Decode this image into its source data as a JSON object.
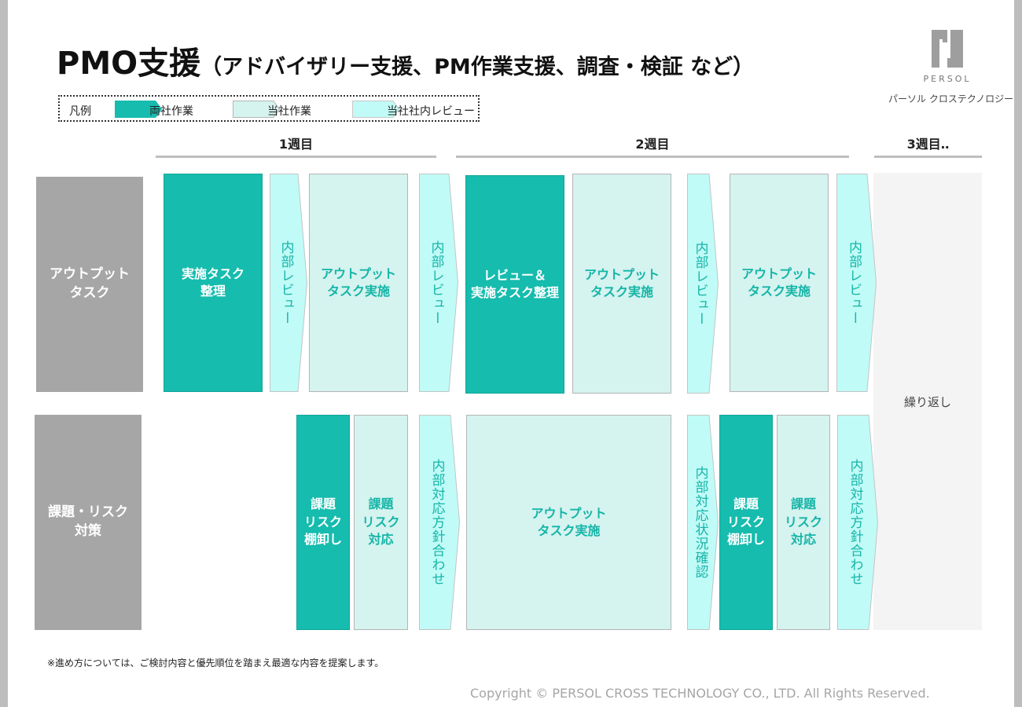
{
  "title": {
    "main": "PMO支援",
    "sub": "（アドバイザリー支援、PM作業支援、調査・検証 など）"
  },
  "logo": {
    "wordmark": "PERSOL",
    "company": "パーソル クロステクノロジー"
  },
  "legend": {
    "label": "凡例",
    "items": [
      {
        "label": "両社作業",
        "color": "#16bcae"
      },
      {
        "label": "当社作業",
        "color": "#d5f3ef"
      },
      {
        "label": "当社社内レビュー",
        "color": "#c0fbf7"
      }
    ]
  },
  "weeks": [
    "1週目",
    "2週目",
    "3週目‥"
  ],
  "rows": [
    "アウトプット\nタスク",
    "課題・リスク\n対策"
  ],
  "row1": {
    "b1": "実施タスク\n整理",
    "a1": "内部レビュー",
    "b2": "アウトプット\nタスク実施",
    "a2": "内部レビュー",
    "b3": "レビュー＆\n実施タスク整理",
    "b4": "アウトプット\nタスク実施",
    "a3": "内部レビュー",
    "b5": "アウトプット\nタスク実施",
    "a4": "内部レビュー"
  },
  "row2": {
    "b1": "課題\nリスク\n棚卸し",
    "b2": "課題\nリスク\n対応",
    "a1": "内部対応方針合わせ",
    "b3": "アウトプット\nタスク実施",
    "a2": "内部対応状況確認",
    "b4": "課題\nリスク\n棚卸し",
    "b5": "課題\nリスク\n対応",
    "a3": "内部対応方針合わせ"
  },
  "repeat": "繰り返し",
  "note": "※進め方については、ご検討内容と優先順位を踏まえ最適な内容を提案します。",
  "copyright": "Copyright © PERSOL CROSS TECHNOLOGY CO., LTD. All Rights Reserved.",
  "colors": {
    "both": "#16bcae",
    "ours": "#d5f3ef",
    "review": "#c0fbf7",
    "label": "#a6a6a6"
  }
}
